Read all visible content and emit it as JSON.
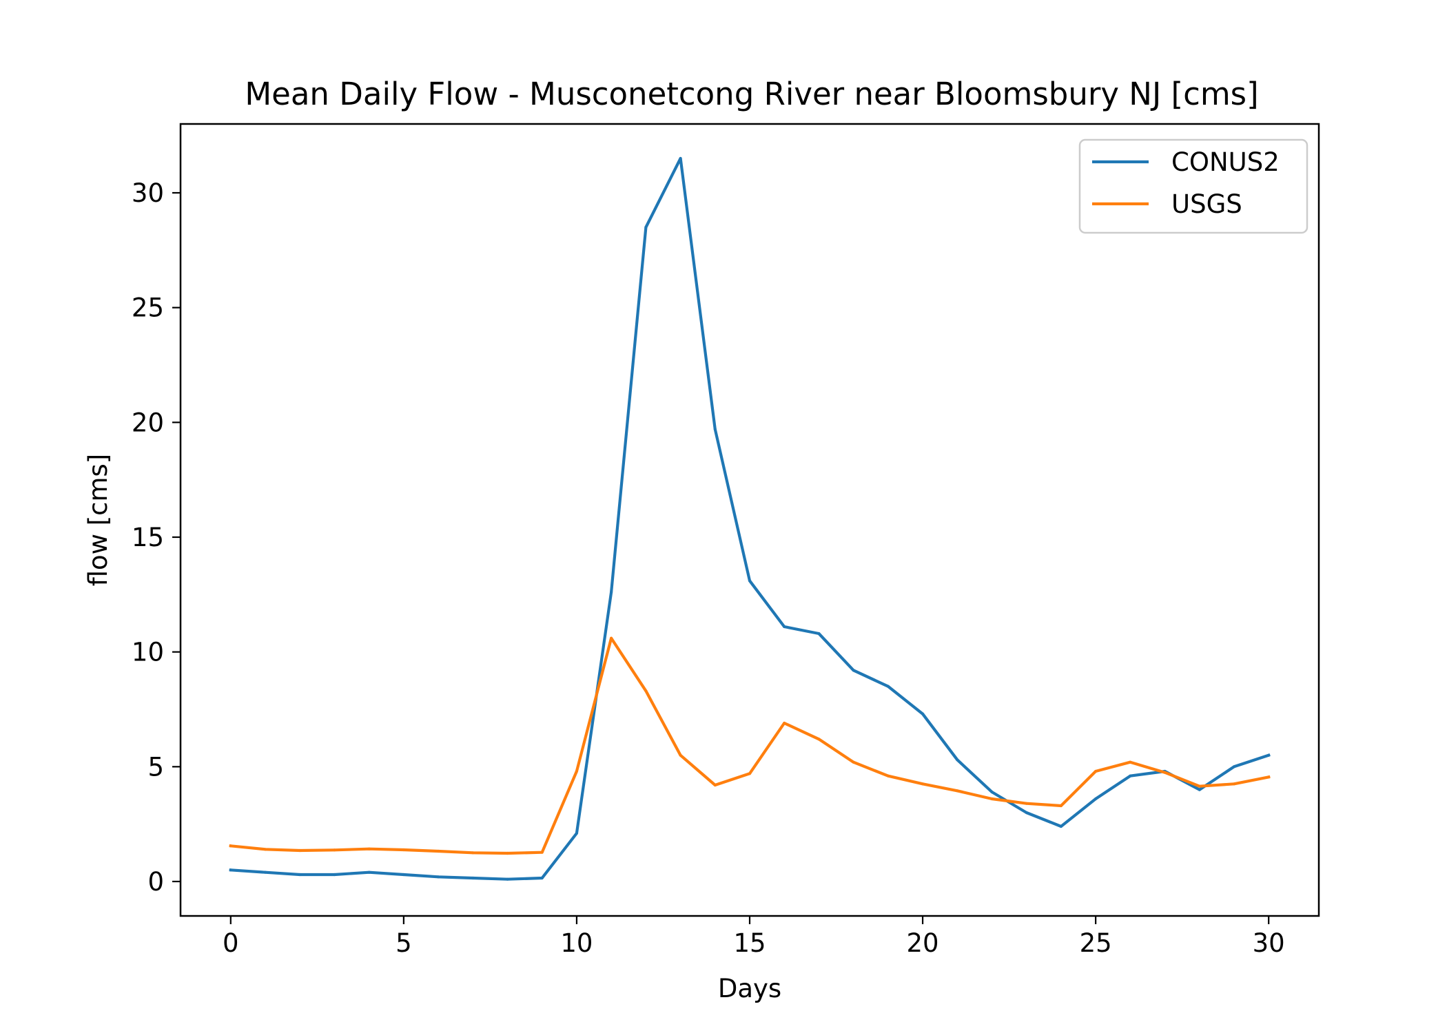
{
  "chart_data": {
    "type": "line",
    "title": "Mean Daily Flow - Musconetcong River near Bloomsbury NJ [cms]",
    "xlabel": "Days",
    "ylabel": "flow [cms]",
    "xlim": [
      -1.45,
      31.45
    ],
    "ylim": [
      -1.5,
      33
    ],
    "xticks": [
      0,
      5,
      10,
      15,
      20,
      25,
      30
    ],
    "yticks": [
      0,
      5,
      10,
      15,
      20,
      25,
      30
    ],
    "grid": false,
    "legend_position": "top-right",
    "x": [
      0,
      1,
      2,
      3,
      4,
      5,
      6,
      7,
      8,
      9,
      10,
      11,
      12,
      13,
      14,
      15,
      16,
      17,
      18,
      19,
      20,
      21,
      22,
      23,
      24,
      25,
      26,
      27,
      28,
      29,
      30
    ],
    "series": [
      {
        "name": "CONUS2",
        "color": "#1f77b4",
        "values": [
          0.5,
          0.4,
          0.3,
          0.3,
          0.4,
          0.3,
          0.2,
          0.15,
          0.1,
          0.15,
          2.1,
          12.6,
          28.5,
          31.5,
          19.7,
          13.1,
          11.1,
          10.8,
          9.2,
          8.5,
          7.3,
          5.3,
          3.9,
          3.0,
          2.4,
          3.6,
          4.6,
          4.8,
          4.0,
          5.0,
          5.5
        ]
      },
      {
        "name": "USGS",
        "color": "#ff7f0e",
        "values": [
          1.55,
          1.4,
          1.35,
          1.37,
          1.42,
          1.38,
          1.32,
          1.25,
          1.23,
          1.27,
          4.8,
          10.6,
          8.3,
          5.5,
          4.2,
          4.7,
          6.9,
          6.2,
          5.2,
          4.6,
          4.25,
          3.95,
          3.6,
          3.4,
          3.3,
          4.8,
          5.2,
          4.75,
          4.15,
          4.25,
          4.55
        ]
      }
    ]
  }
}
